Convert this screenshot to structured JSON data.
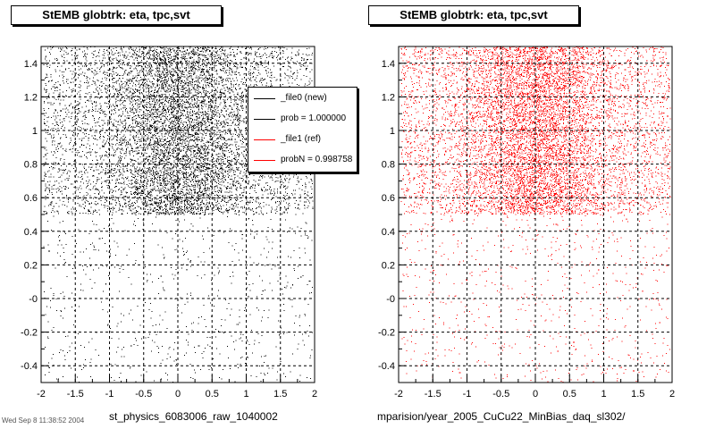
{
  "chart_data": [
    {
      "type": "scatter",
      "title": "StEMB globtrk: eta, tpc,svt",
      "xlabel": "st_physics_6083006_raw_1040002",
      "ylabel": "",
      "xlim": [
        -2,
        2
      ],
      "ylim": [
        -0.5,
        1.5
      ],
      "xticks": [
        "-2",
        "-1.5",
        "-1",
        "-0.5",
        "0",
        "0.5",
        "1",
        "1.5",
        "2"
      ],
      "yticks": [
        "-0.4",
        "-0.2",
        "-0",
        "0.2",
        "0.4",
        "0.6",
        "0.8",
        "1",
        "1.2",
        "1.4"
      ],
      "grid": true,
      "color": "#000000",
      "density_regions": [
        {
          "x_range": [
            -2,
            2
          ],
          "y_range": [
            0.5,
            1.5
          ],
          "level": "dense",
          "peak_x": 0
        },
        {
          "x_range": [
            -2,
            2
          ],
          "y_range": [
            -0.5,
            0.5
          ],
          "level": "sparse"
        }
      ]
    },
    {
      "type": "scatter",
      "title": "StEMB globtrk: eta, tpc,svt",
      "xlabel": "mparision/year_2005_CuCu22_MinBias_daq_sl302/",
      "ylabel": "",
      "xlim": [
        -2,
        2
      ],
      "ylim": [
        -0.5,
        1.5
      ],
      "xticks": [
        "-2",
        "-1.5",
        "-1",
        "-0.5",
        "0",
        "0.5",
        "1",
        "1.5",
        "2"
      ],
      "yticks": [
        "-0.4",
        "-0.2",
        "-0",
        "0.2",
        "0.4",
        "0.6",
        "0.8",
        "1",
        "1.2",
        "1.4"
      ],
      "grid": true,
      "color": "#ff0000",
      "density_regions": [
        {
          "x_range": [
            -2,
            2
          ],
          "y_range": [
            0.5,
            1.5
          ],
          "level": "dense",
          "peak_x": 0
        },
        {
          "x_range": [
            -2,
            2
          ],
          "y_range": [
            -0.5,
            0.5
          ],
          "level": "sparse"
        }
      ]
    }
  ],
  "legend": {
    "placement": "top-right of left plot",
    "entries": [
      {
        "label": "_file0 (new)",
        "color": "#000000"
      },
      {
        "label": "prob = 1.000000",
        "color": "#000000"
      },
      {
        "label": "_file1 (ref)",
        "color": "#ff0000"
      },
      {
        "label": "probN = 0.998758",
        "color": "#ff0000"
      }
    ]
  },
  "footer": {
    "text": "Wed Sep  8 11:38:52 2004"
  }
}
